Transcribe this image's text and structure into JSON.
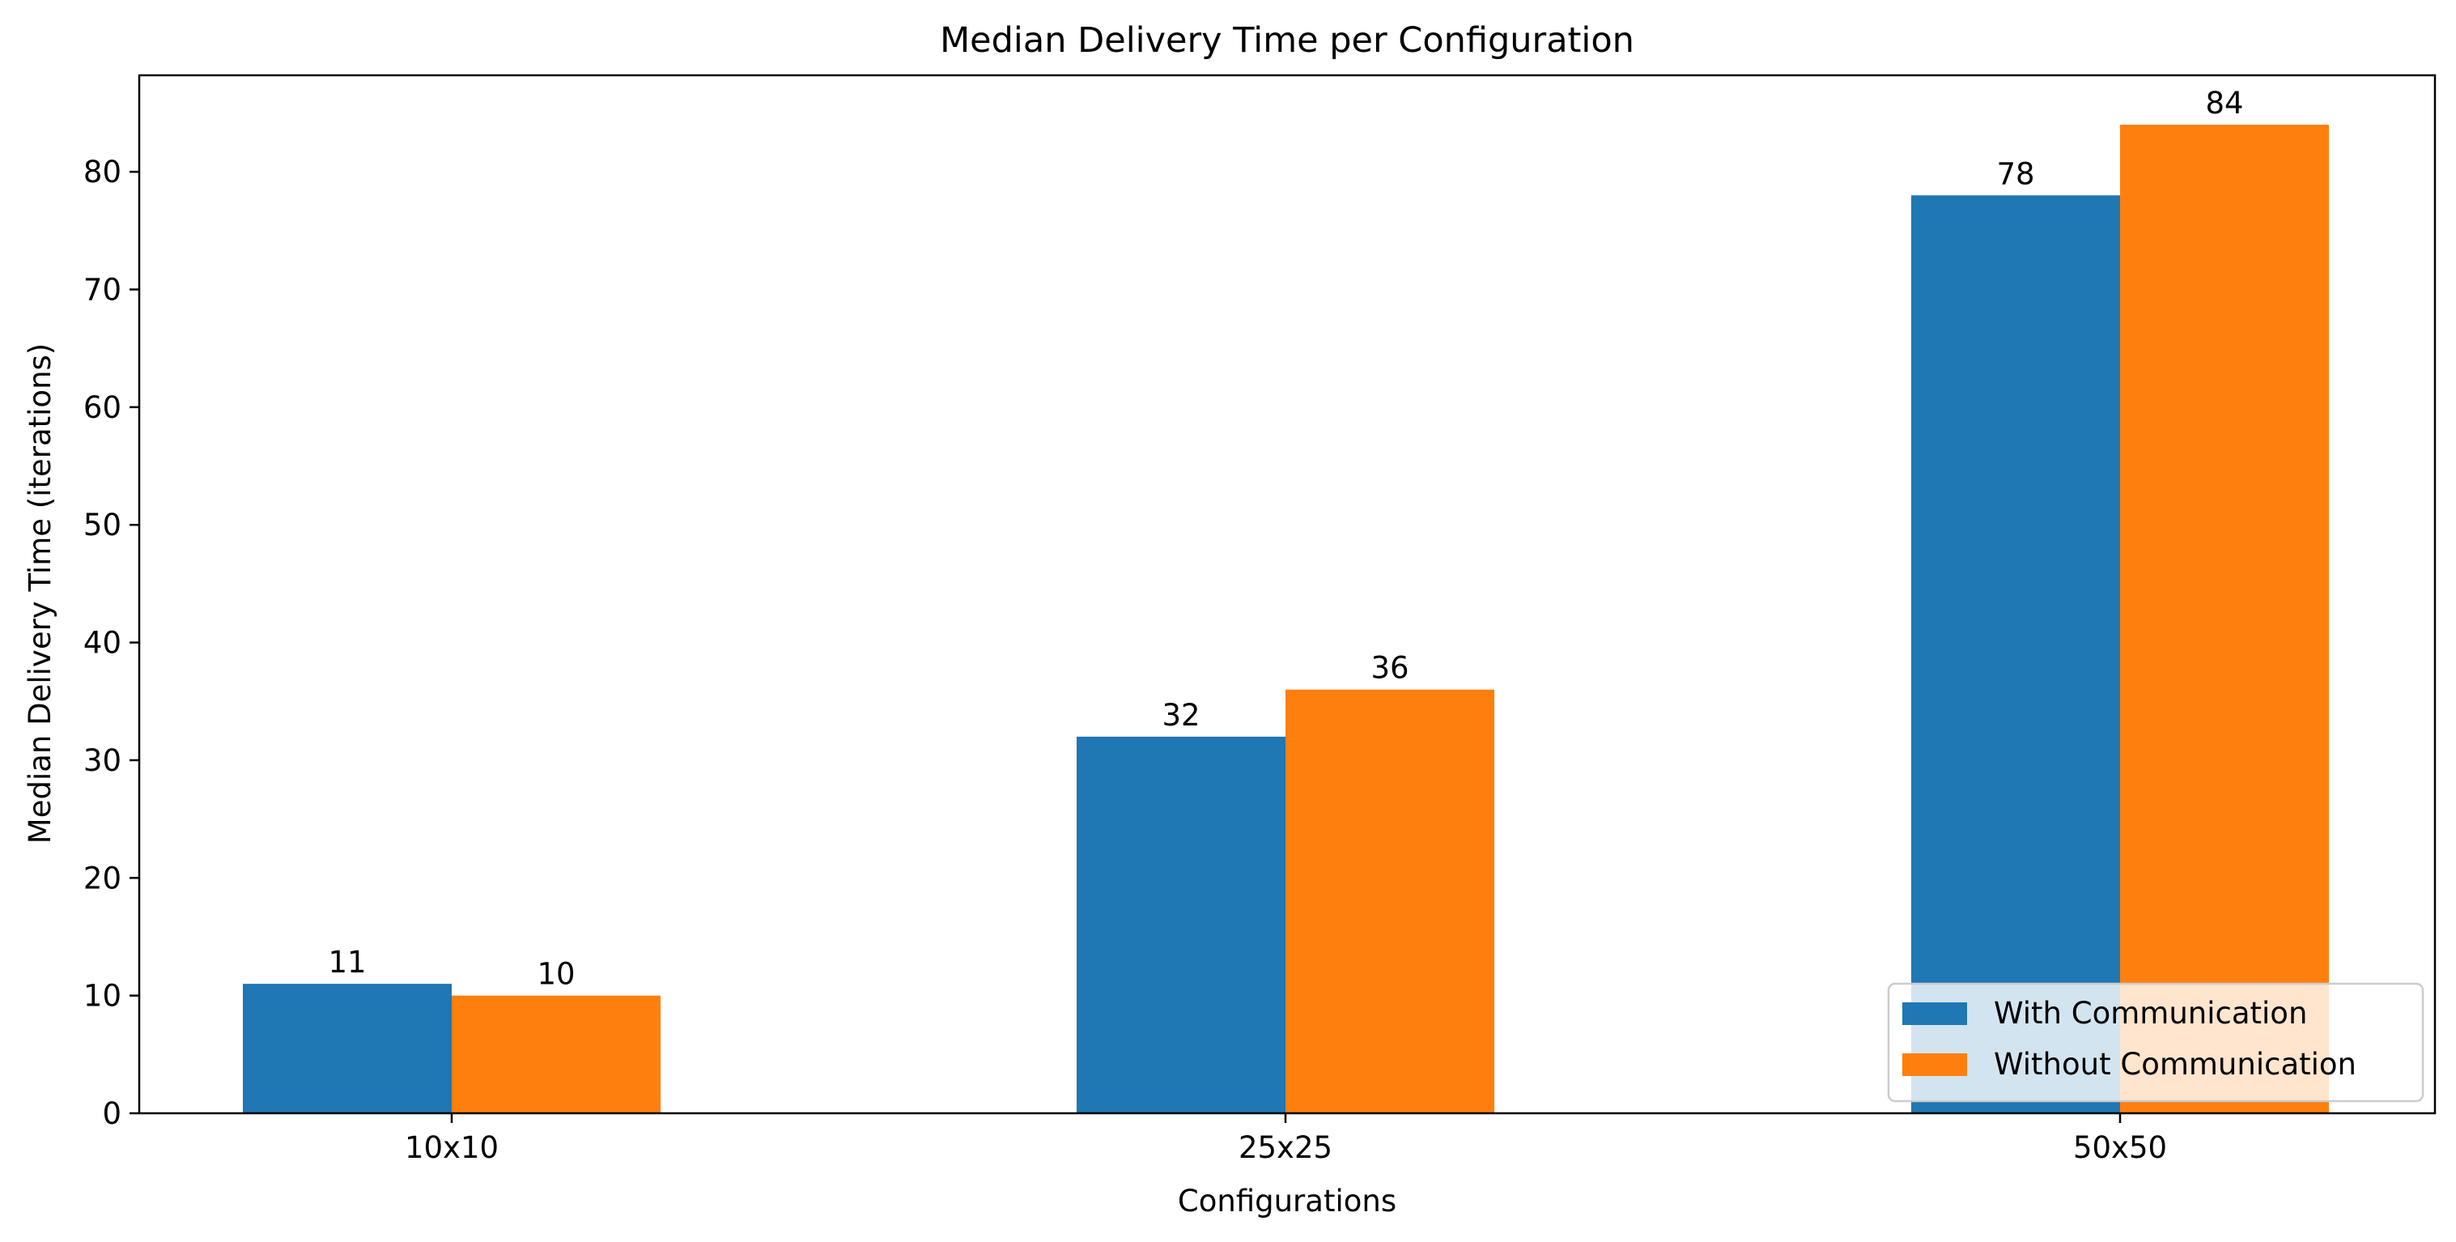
{
  "chart_data": {
    "type": "bar",
    "title": "Median Delivery Time per Configuration",
    "xlabel": "Configurations",
    "ylabel": "Median Delivery Time (iterations)",
    "categories": [
      "10x10",
      "25x25",
      "50x50"
    ],
    "series": [
      {
        "name": "With Communication",
        "values": [
          11,
          32,
          78
        ],
        "color": "#1f77b4"
      },
      {
        "name": "Without Communication",
        "values": [
          10,
          36,
          84
        ],
        "color": "#ff7f0e"
      }
    ],
    "ylim": [
      0,
      88.2
    ],
    "yticks": [
      0,
      10,
      20,
      30,
      40,
      50,
      60,
      70,
      80
    ],
    "grid": false,
    "legend_position": "lower right"
  }
}
